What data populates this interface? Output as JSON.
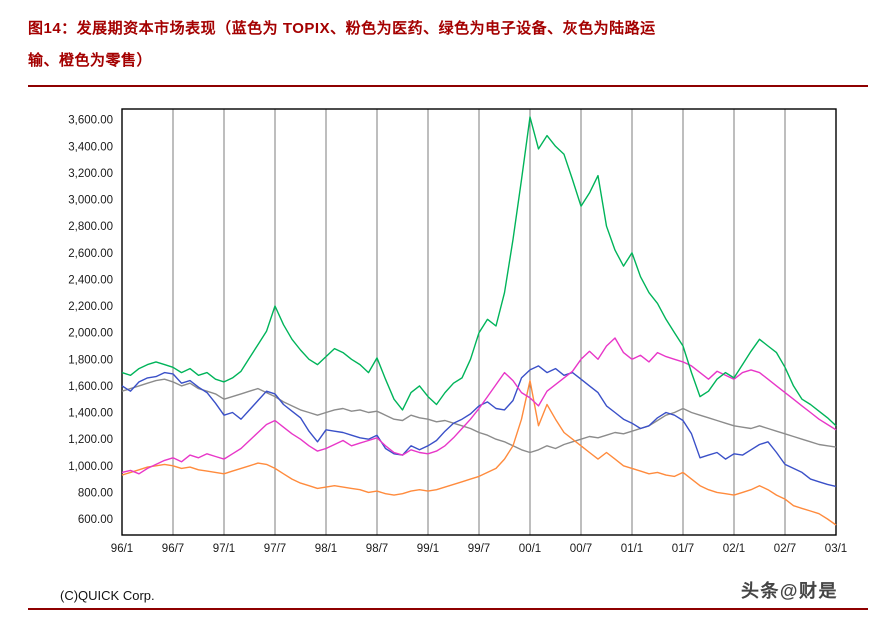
{
  "header": {
    "title_line1": "图14：发展期资本市场表现（蓝色为 TOPIX、粉色为医药、绿色为电子设备、灰色为陆路运",
    "title_line2": "输、橙色为零售）"
  },
  "footer": {
    "watermark": "头条@财是"
  },
  "colors": {
    "title": "#a40000",
    "divider": "#8e0000",
    "grid": "#6e6e6e",
    "plot_border": "#000000"
  },
  "chart_data": {
    "type": "line",
    "title": "",
    "xlabel": "",
    "ylabel": "",
    "source": "(C)QUICK Corp.",
    "grid": "vertical-only",
    "legend": "none (colors explained in figure title)",
    "ylim": [
      480,
      3680
    ],
    "y_ticks": [
      600,
      800,
      1000,
      1200,
      1400,
      1600,
      1800,
      2000,
      2200,
      2400,
      2600,
      2800,
      3000,
      3200,
      3400,
      3600
    ],
    "x_tick_labels": [
      "96/1",
      "96/7",
      "97/1",
      "97/7",
      "98/1",
      "98/7",
      "99/1",
      "99/7",
      "00/1",
      "00/7",
      "01/1",
      "01/7",
      "02/1",
      "02/7",
      "03/1"
    ],
    "x_tick_positions": [
      0,
      6,
      12,
      18,
      24,
      30,
      36,
      42,
      48,
      54,
      60,
      66,
      72,
      78,
      84
    ],
    "x_unit": "monthly points from 1996/1 to 2003/1",
    "n_points": 85,
    "series": [
      {
        "name": "TOPIX",
        "color": "#3a50c8",
        "values": [
          1600,
          1560,
          1630,
          1660,
          1670,
          1700,
          1690,
          1620,
          1640,
          1590,
          1550,
          1470,
          1380,
          1400,
          1350,
          1420,
          1490,
          1560,
          1540,
          1460,
          1410,
          1360,
          1260,
          1180,
          1270,
          1260,
          1250,
          1230,
          1210,
          1200,
          1230,
          1130,
          1090,
          1080,
          1150,
          1120,
          1150,
          1190,
          1260,
          1320,
          1350,
          1390,
          1450,
          1480,
          1430,
          1420,
          1490,
          1660,
          1720,
          1750,
          1700,
          1730,
          1680,
          1700,
          1650,
          1600,
          1550,
          1450,
          1400,
          1350,
          1320,
          1280,
          1300,
          1360,
          1400,
          1380,
          1340,
          1240,
          1060,
          1080,
          1100,
          1050,
          1090,
          1080,
          1120,
          1160,
          1180,
          1100,
          1010,
          980,
          950,
          900,
          880,
          860,
          845
        ]
      },
      {
        "name": "医药",
        "color": "#e837c8",
        "values": [
          950,
          965,
          940,
          980,
          1010,
          1040,
          1060,
          1030,
          1080,
          1060,
          1090,
          1070,
          1050,
          1090,
          1130,
          1190,
          1250,
          1310,
          1340,
          1290,
          1240,
          1200,
          1150,
          1110,
          1130,
          1160,
          1190,
          1150,
          1170,
          1190,
          1210,
          1150,
          1100,
          1080,
          1120,
          1100,
          1090,
          1110,
          1150,
          1210,
          1280,
          1350,
          1430,
          1520,
          1610,
          1700,
          1640,
          1550,
          1510,
          1450,
          1560,
          1610,
          1660,
          1710,
          1800,
          1860,
          1800,
          1900,
          1960,
          1850,
          1800,
          1830,
          1780,
          1850,
          1820,
          1800,
          1780,
          1750,
          1700,
          1650,
          1710,
          1680,
          1650,
          1700,
          1720,
          1700,
          1650,
          1600,
          1550,
          1500,
          1450,
          1400,
          1350,
          1310,
          1270
        ]
      },
      {
        "name": "电子设备",
        "color": "#00b45a",
        "values": [
          1700,
          1680,
          1730,
          1760,
          1780,
          1760,
          1740,
          1700,
          1730,
          1680,
          1700,
          1650,
          1630,
          1660,
          1710,
          1810,
          1910,
          2010,
          2200,
          2060,
          1950,
          1870,
          1800,
          1760,
          1820,
          1880,
          1850,
          1800,
          1760,
          1700,
          1810,
          1650,
          1500,
          1420,
          1550,
          1600,
          1520,
          1460,
          1550,
          1620,
          1660,
          1800,
          2000,
          2100,
          2050,
          2300,
          2700,
          3150,
          3620,
          3380,
          3480,
          3400,
          3340,
          3150,
          2950,
          3050,
          3180,
          2800,
          2620,
          2500,
          2600,
          2420,
          2300,
          2220,
          2100,
          2000,
          1900,
          1700,
          1520,
          1560,
          1650,
          1700,
          1660,
          1760,
          1860,
          1950,
          1900,
          1850,
          1740,
          1600,
          1500,
          1460,
          1410,
          1360,
          1300
        ]
      },
      {
        "name": "陆路运输",
        "color": "#8c8c8c",
        "values": [
          1560,
          1580,
          1600,
          1620,
          1640,
          1650,
          1630,
          1600,
          1620,
          1580,
          1560,
          1540,
          1500,
          1520,
          1540,
          1560,
          1580,
          1550,
          1520,
          1480,
          1450,
          1420,
          1400,
          1380,
          1400,
          1420,
          1430,
          1410,
          1420,
          1400,
          1410,
          1380,
          1350,
          1340,
          1380,
          1360,
          1350,
          1330,
          1340,
          1320,
          1300,
          1280,
          1250,
          1230,
          1200,
          1180,
          1150,
          1120,
          1100,
          1120,
          1150,
          1130,
          1160,
          1180,
          1200,
          1220,
          1210,
          1230,
          1250,
          1240,
          1260,
          1280,
          1300,
          1340,
          1380,
          1400,
          1430,
          1400,
          1380,
          1360,
          1340,
          1320,
          1300,
          1290,
          1280,
          1300,
          1280,
          1260,
          1240,
          1220,
          1200,
          1180,
          1160,
          1150,
          1140
        ]
      },
      {
        "name": "零售",
        "color": "#ff8b3d",
        "values": [
          930,
          950,
          970,
          990,
          1000,
          1010,
          1000,
          980,
          990,
          970,
          960,
          950,
          940,
          960,
          980,
          1000,
          1020,
          1010,
          980,
          940,
          900,
          870,
          850,
          830,
          840,
          850,
          840,
          830,
          820,
          800,
          810,
          790,
          780,
          790,
          810,
          820,
          810,
          820,
          840,
          860,
          880,
          900,
          920,
          950,
          980,
          1050,
          1150,
          1350,
          1640,
          1300,
          1460,
          1350,
          1250,
          1200,
          1150,
          1100,
          1050,
          1100,
          1050,
          1000,
          980,
          960,
          940,
          950,
          930,
          920,
          950,
          900,
          850,
          820,
          800,
          790,
          780,
          800,
          820,
          850,
          820,
          780,
          750,
          700,
          680,
          660,
          640,
          600,
          555
        ]
      }
    ]
  }
}
